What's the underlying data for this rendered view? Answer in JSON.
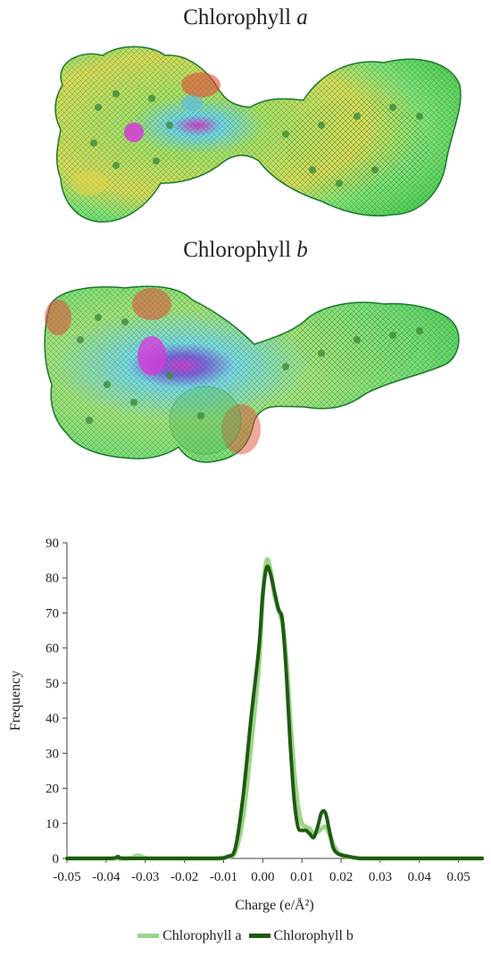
{
  "molecules": [
    {
      "name": "Chlorophyll",
      "suffix": "a"
    },
    {
      "name": "Chlorophyll",
      "suffix": "b"
    }
  ],
  "colors": {
    "series_a": "#9dd58a",
    "series_b": "#1f5a12"
  },
  "chart_data": {
    "type": "line",
    "title": "",
    "xlabel": "Charge (e/Å²)",
    "ylabel": "Frequency",
    "xlim": [
      -0.05,
      0.056
    ],
    "ylim": [
      0,
      90
    ],
    "xticks": [
      "-0.05",
      "-0.04",
      "-0.03",
      "-0.02",
      "-0.01",
      "0.00",
      "0.01",
      "0.02",
      "0.03",
      "0.04",
      "0.05"
    ],
    "yticks": [
      "0",
      "10",
      "20",
      "30",
      "40",
      "50",
      "60",
      "70",
      "80",
      "90"
    ],
    "grid": false,
    "legend": "bottom",
    "series": [
      {
        "name": "Chlorophyll a",
        "color": "#9dd58a",
        "x": [
          -0.05,
          -0.035,
          -0.032,
          -0.029,
          -0.02,
          -0.012,
          -0.009,
          -0.007,
          -0.005,
          -0.003,
          -0.001,
          0.0,
          0.001,
          0.002,
          0.003,
          0.004,
          0.005,
          0.006,
          0.007,
          0.008,
          0.009,
          0.01,
          0.011,
          0.012,
          0.013,
          0.014,
          0.015,
          0.016,
          0.017,
          0.018,
          0.019,
          0.02,
          0.022,
          0.025,
          0.03,
          0.056
        ],
        "y": [
          0,
          0,
          0.8,
          0,
          0,
          0,
          0.5,
          2,
          12,
          32,
          55,
          75,
          85,
          82,
          75,
          71,
          67,
          57,
          40,
          25,
          15,
          10,
          9,
          8.5,
          7,
          7.5,
          8.5,
          9,
          7,
          4,
          2,
          1,
          0.5,
          0,
          0,
          0
        ]
      },
      {
        "name": "Chlorophyll b",
        "color": "#1f5a12",
        "x": [
          -0.05,
          -0.039,
          -0.037,
          -0.035,
          -0.02,
          -0.012,
          -0.009,
          -0.007,
          -0.005,
          -0.003,
          -0.001,
          0.0,
          0.001,
          0.002,
          0.003,
          0.004,
          0.005,
          0.006,
          0.007,
          0.008,
          0.009,
          0.01,
          0.011,
          0.012,
          0.013,
          0.014,
          0.015,
          0.016,
          0.017,
          0.018,
          0.019,
          0.02,
          0.022,
          0.025,
          0.03,
          0.056
        ],
        "y": [
          0,
          0,
          0.5,
          0,
          0,
          0,
          0.5,
          3,
          18,
          40,
          60,
          75,
          83,
          81,
          76,
          71,
          68,
          53,
          33,
          17,
          9,
          8,
          8,
          7,
          6,
          9,
          13,
          13,
          8,
          3,
          1.5,
          1,
          0.5,
          0,
          0,
          0
        ]
      }
    ]
  }
}
